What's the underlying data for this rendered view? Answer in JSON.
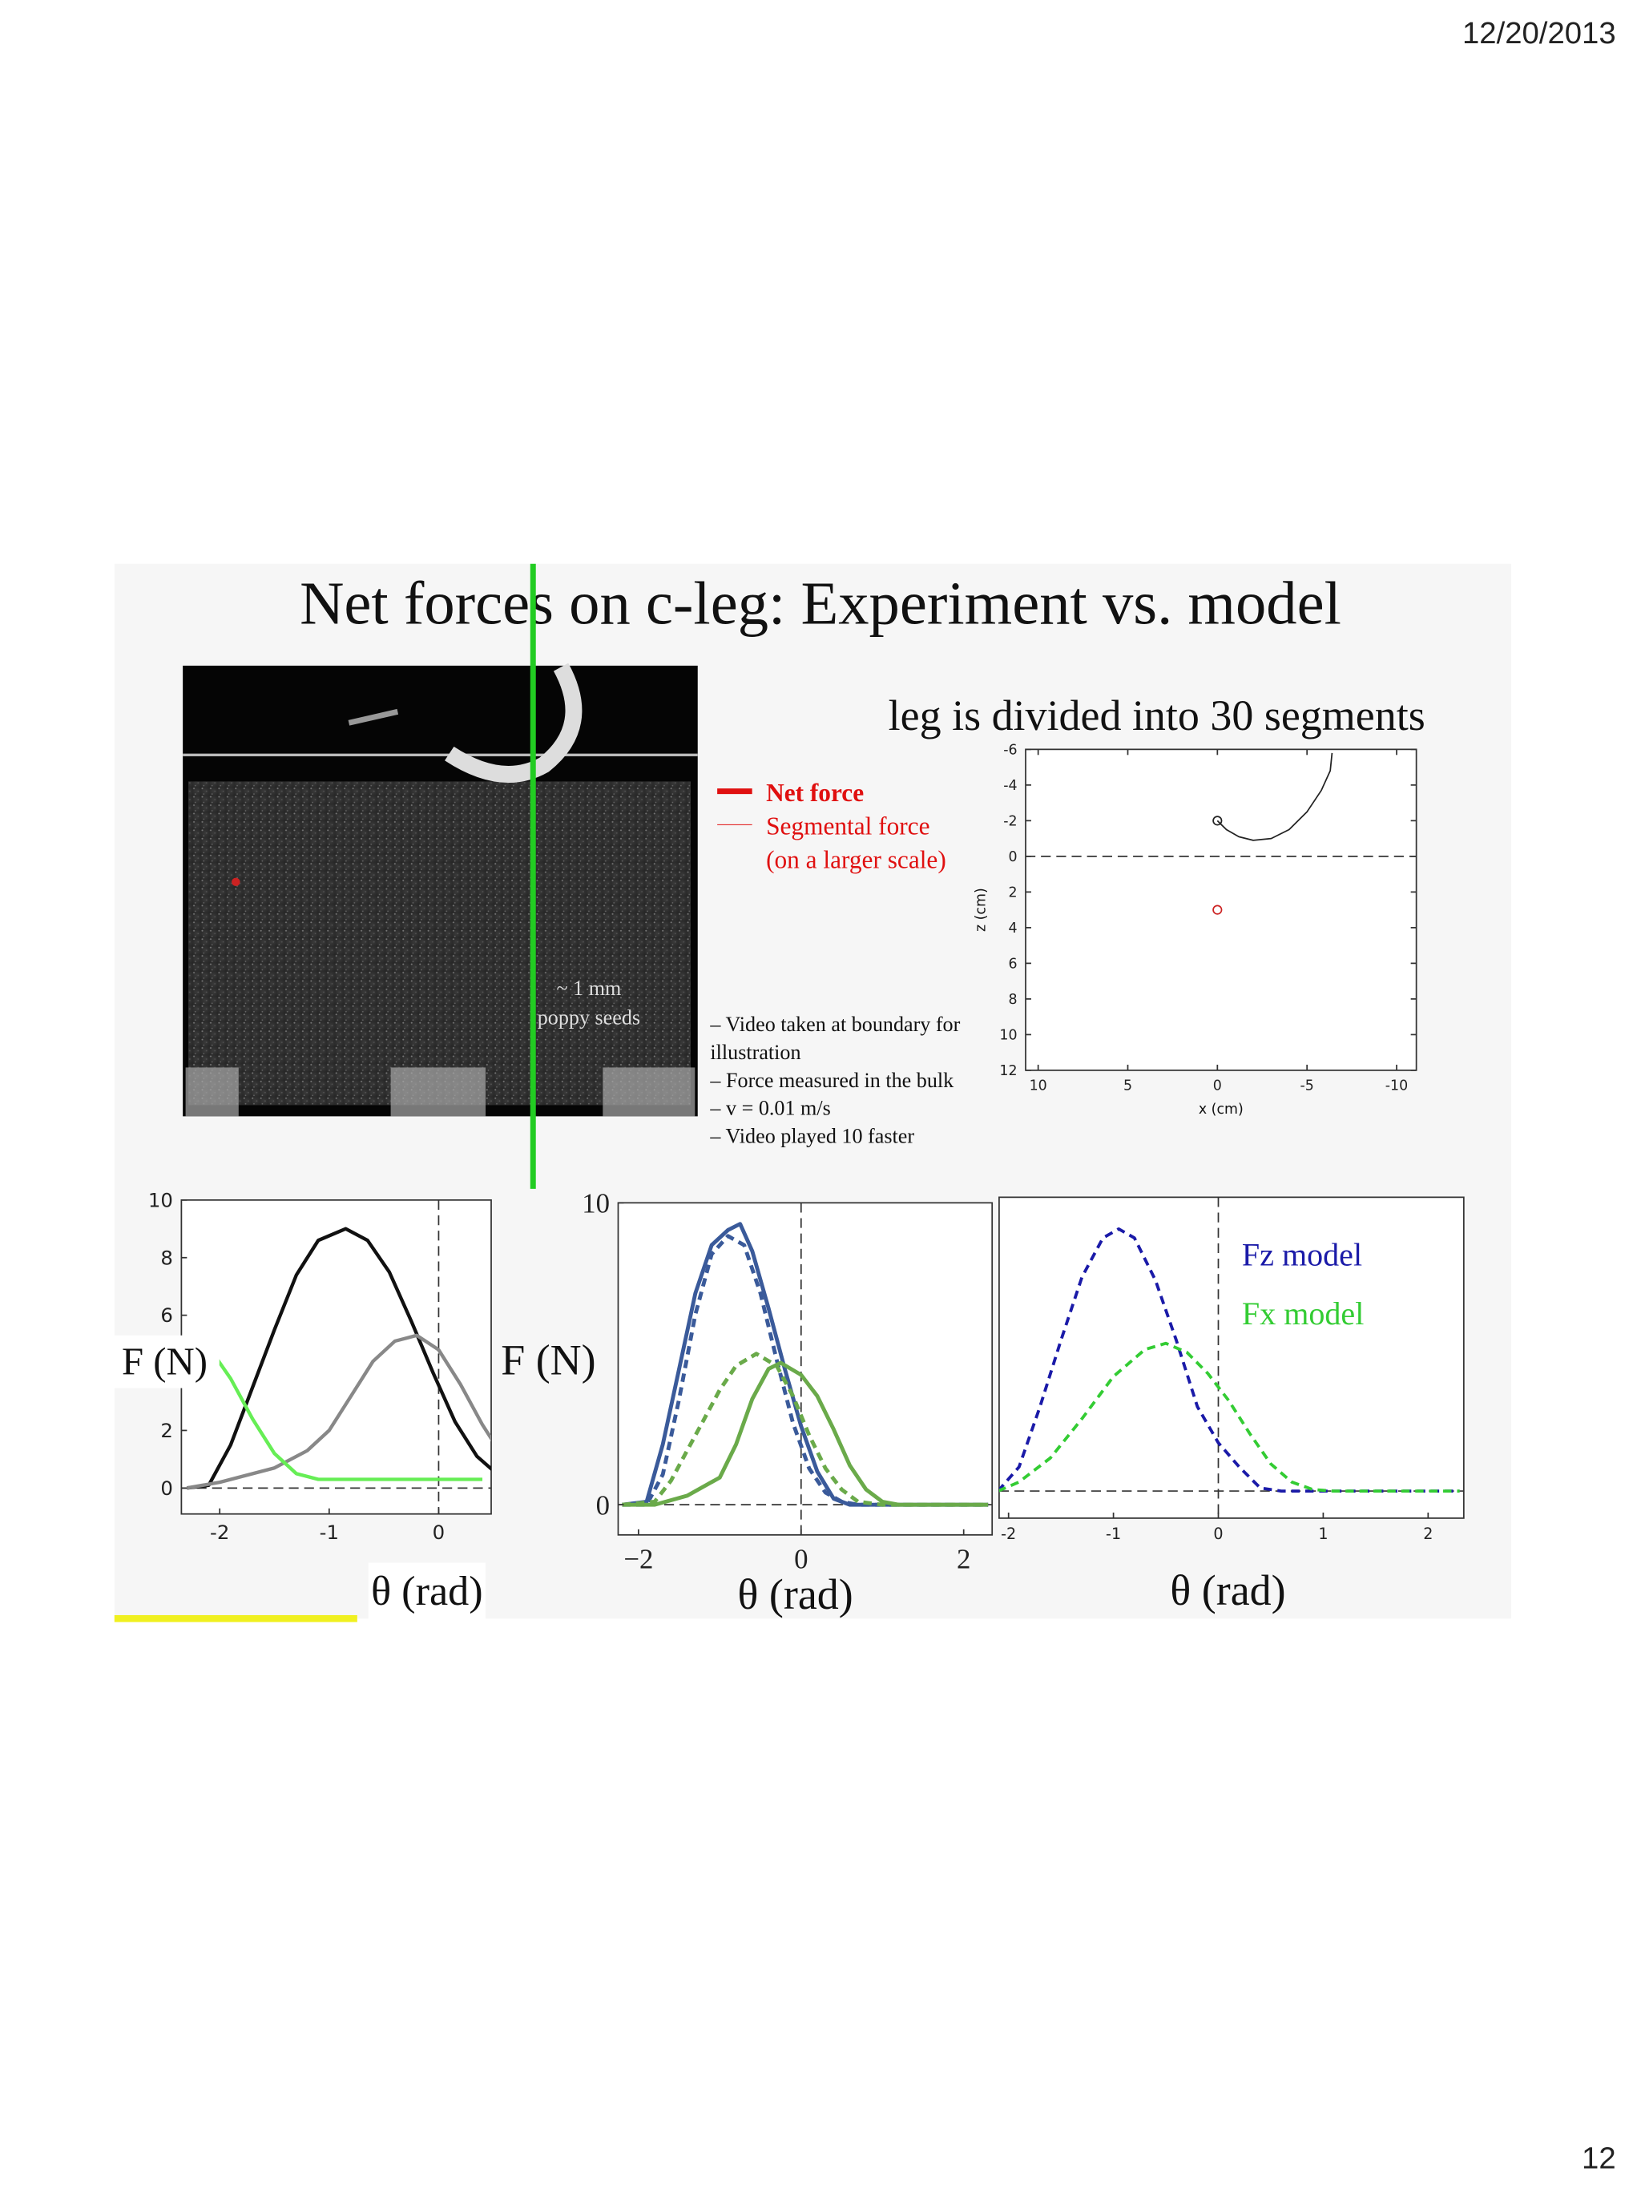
{
  "header": {
    "date": "12/20/2013"
  },
  "footer": {
    "page_number": "12"
  },
  "slide": {
    "title": "Net forces on c-leg: Experiment vs. model",
    "subtitle": "leg is divided into 30 segments",
    "legend": {
      "net_force": "Net force",
      "segmental_force": "Segmental force",
      "segmental_note": "(on a larger scale)"
    },
    "photo_caption": [
      "~ 1 mm",
      "poppy seeds"
    ],
    "notes": [
      "– Video taken at boundary for",
      "illustration",
      "– Force measured in the bulk",
      "– v = 0.01 m/s",
      "– Video played 10   faster"
    ]
  },
  "chart_data": [
    {
      "type": "line",
      "xlabel": "x (cm)",
      "ylabel": "z (cm)",
      "xlim": [
        10.7,
        -11.1
      ],
      "ylim": [
        -6,
        12
      ],
      "y_inverted": true,
      "xticks": [
        10,
        5,
        0,
        -5,
        -10
      ],
      "yticks": [
        -6,
        -4,
        -2,
        0,
        2,
        4,
        6,
        8,
        10,
        12
      ],
      "zero_lines": [
        "y"
      ],
      "series": [
        {
          "color": "#222222",
          "x": [
            0,
            -0.5,
            -1.2,
            -2,
            -3,
            -4,
            -5,
            -5.8,
            -6.3,
            -6.4
          ],
          "values": [
            -2,
            -1.5,
            -1.1,
            -0.9,
            -1,
            -1.5,
            -2.5,
            -3.7,
            -4.8,
            -5.8
          ]
        }
      ],
      "markers": [
        {
          "x": 0,
          "y": -2,
          "color": "#222222"
        },
        {
          "x": 0,
          "y": 3,
          "color": "#cc2222"
        }
      ]
    },
    {
      "type": "line",
      "xlabel": "θ (rad)",
      "ylabel": "F (N)",
      "xlim": [
        -2.35,
        0.48
      ],
      "ylim": [
        -0.9,
        10
      ],
      "xticks": [
        -2,
        -1,
        0
      ],
      "yticks": [
        0,
        2,
        4,
        6,
        8,
        10
      ],
      "zero_lines": [
        "x",
        "y"
      ],
      "series": [
        {
          "color": "#111111",
          "x": [
            -2.3,
            -2.1,
            -1.9,
            -1.7,
            -1.5,
            -1.3,
            -1.1,
            -0.85,
            -0.65,
            -0.45,
            -0.25,
            -0.05,
            0.15,
            0.35,
            0.5
          ],
          "values": [
            0,
            0.1,
            1.5,
            3.5,
            5.5,
            7.4,
            8.6,
            9,
            8.6,
            7.5,
            5.8,
            4,
            2.3,
            1.1,
            0.6
          ]
        },
        {
          "color": "#888888",
          "x": [
            -2.3,
            -2,
            -1.8,
            -1.5,
            -1.2,
            -1,
            -0.8,
            -0.6,
            -0.4,
            -0.2,
            0,
            0.2,
            0.4,
            0.5
          ],
          "values": [
            0,
            0.2,
            0.4,
            0.7,
            1.3,
            2,
            3.2,
            4.4,
            5.1,
            5.3,
            4.8,
            3.6,
            2.2,
            1.6
          ]
        },
        {
          "color": "#66ee55",
          "x": [
            -2.35,
            -2.1,
            -1.9,
            -1.7,
            -1.5,
            -1.3,
            -1.1,
            0.4
          ],
          "values": [
            4.4,
            4.9,
            3.8,
            2.4,
            1.2,
            0.5,
            0.3,
            0.3
          ]
        }
      ]
    },
    {
      "type": "line",
      "xlabel": "θ (rad)",
      "ylabel": "F (N)",
      "xlim": [
        -2.25,
        2.35
      ],
      "ylim": [
        -1,
        10
      ],
      "xticks": [
        {
          "value": -2,
          "label": "−2"
        },
        0,
        2
      ],
      "yticks": [
        0,
        10
      ],
      "zero_lines": [
        "x",
        "y"
      ],
      "series": [
        {
          "color": "#3a5a9a",
          "x": [
            -2.2,
            -1.9,
            -1.7,
            -1.5,
            -1.3,
            -1.1,
            -0.9,
            -0.75,
            -0.6,
            -0.4,
            -0.2,
            0,
            0.2,
            0.4,
            0.6,
            1,
            2.3
          ],
          "values": [
            0,
            0.1,
            2,
            4.5,
            7,
            8.6,
            9.1,
            9.3,
            8.4,
            6.5,
            4.5,
            2.6,
            1.1,
            0.2,
            0,
            0,
            0
          ]
        },
        {
          "color": "#3a5a9a",
          "dash": true,
          "x": [
            -2.2,
            -1.9,
            -1.7,
            -1.5,
            -1.3,
            -1.1,
            -0.9,
            -0.7,
            -0.5,
            -0.3,
            -0.1,
            0.1,
            0.3,
            0.5,
            0.7,
            2.3
          ],
          "values": [
            0,
            0,
            1,
            3.5,
            6.3,
            8.3,
            8.9,
            8.6,
            7,
            4.8,
            2.7,
            1.2,
            0.4,
            0.1,
            0,
            0
          ]
        },
        {
          "color": "#6aaa4a",
          "x": [
            -2.2,
            -1.8,
            -1.4,
            -1,
            -0.8,
            -0.6,
            -0.4,
            -0.25,
            0,
            0.2,
            0.4,
            0.6,
            0.8,
            1,
            1.2,
            2.3
          ],
          "values": [
            0,
            0,
            0.3,
            0.9,
            2,
            3.5,
            4.5,
            4.7,
            4.3,
            3.6,
            2.5,
            1.3,
            0.5,
            0.1,
            0,
            0
          ]
        },
        {
          "color": "#6aaa4a",
          "dash": true,
          "x": [
            -2.2,
            -1.8,
            -1.6,
            -1.4,
            -1.2,
            -1,
            -0.8,
            -0.55,
            -0.3,
            -0.1,
            0.1,
            0.3,
            0.5,
            0.7,
            1,
            2.3
          ],
          "values": [
            0,
            0.1,
            0.8,
            1.8,
            2.8,
            3.8,
            4.6,
            5,
            4.6,
            3.6,
            2.3,
            1.2,
            0.5,
            0.1,
            0,
            0
          ]
        }
      ]
    },
    {
      "type": "line",
      "xlabel": "θ (rad)",
      "xlim": [
        -2.09,
        2.34
      ],
      "ylim": [
        -0.9,
        9.75
      ],
      "xticks": [
        -2,
        -1,
        0,
        1,
        2
      ],
      "zero_lines": [
        "x",
        "y"
      ],
      "legend": "upper right",
      "series": [
        {
          "name": "Fz model",
          "color": "#1a1aa8",
          "dash": true,
          "x": [
            -2.1,
            -1.9,
            -1.7,
            -1.5,
            -1.3,
            -1.1,
            -0.95,
            -0.8,
            -0.6,
            -0.4,
            -0.2,
            0,
            0.2,
            0.4,
            0.6,
            2.3
          ],
          "values": [
            0,
            0.8,
            2.8,
            5,
            7.1,
            8.4,
            8.7,
            8.4,
            7,
            5,
            2.8,
            1.6,
            0.8,
            0.1,
            0,
            0
          ]
        },
        {
          "name": "Fx model",
          "color": "#33cc33",
          "dash": true,
          "x": [
            -2.1,
            -1.9,
            -1.6,
            -1.3,
            -1,
            -0.7,
            -0.5,
            -0.3,
            -0.1,
            0.1,
            0.3,
            0.5,
            0.7,
            0.9,
            1.1,
            2.3
          ],
          "values": [
            0,
            0.3,
            1.1,
            2.4,
            3.8,
            4.7,
            4.9,
            4.6,
            3.9,
            3,
            1.9,
            0.9,
            0.3,
            0.05,
            0,
            0
          ]
        }
      ]
    }
  ]
}
